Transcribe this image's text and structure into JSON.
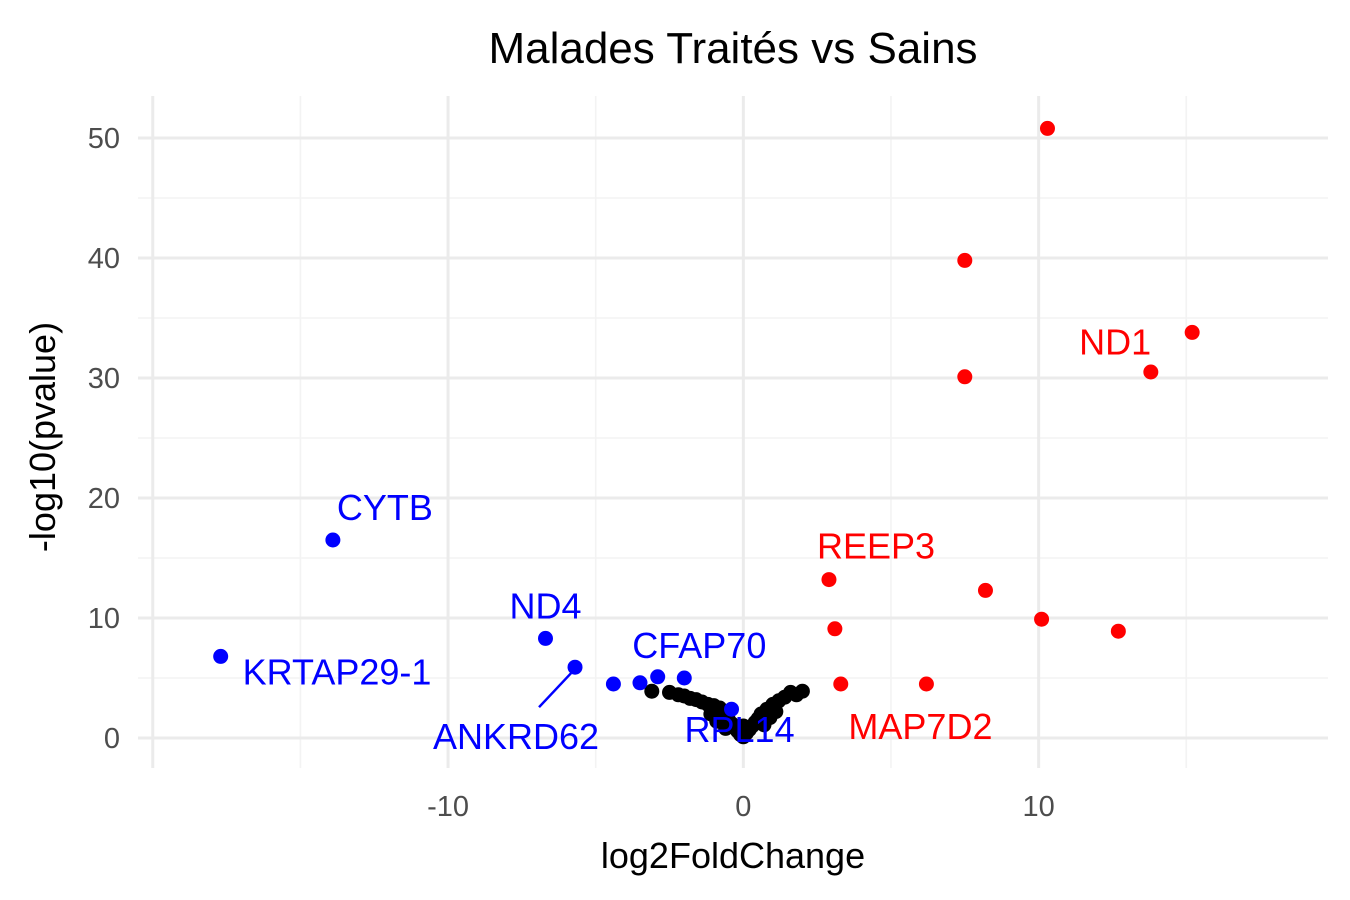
{
  "chart_data": {
    "type": "scatter",
    "title": "Malades Traités vs Sains",
    "xlabel": "log2FoldChange",
    "ylabel": "-log10(pvalue)",
    "xlim": [
      -20.5,
      19.8
    ],
    "ylim": [
      -2.5,
      53.5
    ],
    "xticks": [
      -10,
      0,
      10
    ],
    "xtick_labels": [
      "-10",
      "0",
      "10"
    ],
    "yticks": [
      0,
      10,
      20,
      30,
      40,
      50
    ],
    "ytick_labels": [
      "0",
      "10",
      "20",
      "30",
      "40",
      "50"
    ],
    "grid": true,
    "colors": {
      "down": "#0000ff",
      "up": "#ff0000",
      "ns": "#000000"
    },
    "series": [
      {
        "group": "down",
        "points": [
          {
            "x": -17.7,
            "y": 6.8
          },
          {
            "x": -13.9,
            "y": 16.5
          },
          {
            "x": -6.7,
            "y": 8.3
          },
          {
            "x": -5.7,
            "y": 5.9
          },
          {
            "x": -4.4,
            "y": 4.5
          },
          {
            "x": -3.5,
            "y": 4.6
          },
          {
            "x": -2.9,
            "y": 5.1
          },
          {
            "x": -2.0,
            "y": 5.0
          },
          {
            "x": -0.4,
            "y": 2.4
          }
        ]
      },
      {
        "group": "up",
        "points": [
          {
            "x": 10.3,
            "y": 50.8
          },
          {
            "x": 7.5,
            "y": 39.8
          },
          {
            "x": 15.2,
            "y": 33.8
          },
          {
            "x": 13.8,
            "y": 30.5
          },
          {
            "x": 7.5,
            "y": 30.1
          },
          {
            "x": 2.9,
            "y": 13.2
          },
          {
            "x": 8.2,
            "y": 12.3
          },
          {
            "x": 10.1,
            "y": 9.9
          },
          {
            "x": 12.7,
            "y": 8.9
          },
          {
            "x": 3.1,
            "y": 9.1
          },
          {
            "x": 3.3,
            "y": 4.5
          },
          {
            "x": 6.2,
            "y": 4.5
          }
        ]
      },
      {
        "group": "ns",
        "points": [
          {
            "x": -3.1,
            "y": 3.9
          },
          {
            "x": -2.5,
            "y": 3.8
          },
          {
            "x": -2.2,
            "y": 3.6
          },
          {
            "x": -2.0,
            "y": 3.5
          },
          {
            "x": -1.8,
            "y": 3.3
          },
          {
            "x": -1.6,
            "y": 3.2
          },
          {
            "x": -1.4,
            "y": 3.0
          },
          {
            "x": -1.2,
            "y": 2.8
          },
          {
            "x": -1.0,
            "y": 2.7
          },
          {
            "x": -0.8,
            "y": 2.5
          },
          {
            "x": -0.7,
            "y": 2.1
          },
          {
            "x": -0.6,
            "y": 1.8
          },
          {
            "x": -0.5,
            "y": 1.5
          },
          {
            "x": -0.4,
            "y": 1.2
          },
          {
            "x": -0.3,
            "y": 0.9
          },
          {
            "x": -0.2,
            "y": 0.6
          },
          {
            "x": -0.1,
            "y": 0.3
          },
          {
            "x": 0.0,
            "y": 0.1
          },
          {
            "x": 0.1,
            "y": 0.4
          },
          {
            "x": 0.2,
            "y": 0.7
          },
          {
            "x": 0.3,
            "y": 1.0
          },
          {
            "x": 0.4,
            "y": 1.3
          },
          {
            "x": 0.5,
            "y": 1.6
          },
          {
            "x": 0.6,
            "y": 2.0
          },
          {
            "x": 0.8,
            "y": 2.4
          },
          {
            "x": 1.0,
            "y": 2.8
          },
          {
            "x": 1.2,
            "y": 3.1
          },
          {
            "x": 1.4,
            "y": 3.4
          },
          {
            "x": 1.6,
            "y": 3.8
          },
          {
            "x": 1.8,
            "y": 3.6
          },
          {
            "x": 2.0,
            "y": 3.9
          },
          {
            "x": -0.9,
            "y": 1.4
          },
          {
            "x": -0.6,
            "y": 0.8
          },
          {
            "x": 0.7,
            "y": 1.1
          },
          {
            "x": 0.9,
            "y": 1.7
          },
          {
            "x": -1.1,
            "y": 2.0
          },
          {
            "x": 1.1,
            "y": 2.2
          },
          {
            "x": 0.0,
            "y": 1.0
          }
        ]
      }
    ],
    "labels": [
      {
        "text": "CYTB",
        "x": -13.9,
        "y": 16.5,
        "group": "down"
      },
      {
        "text": "KRTAP29-1",
        "x": -17.7,
        "y": 6.8,
        "group": "down"
      },
      {
        "text": "ND4",
        "x": -6.7,
        "y": 8.3,
        "group": "down"
      },
      {
        "text": "ANKRD62",
        "x": -5.7,
        "y": 5.9,
        "group": "down"
      },
      {
        "text": "CFAP70",
        "x": -2.0,
        "y": 5.0,
        "group": "down"
      },
      {
        "text": "RPL14",
        "x": -0.4,
        "y": 2.4,
        "group": "down"
      },
      {
        "text": "ND1",
        "x": 15.2,
        "y": 33.8,
        "group": "up"
      },
      {
        "text": "REEP3",
        "x": 2.9,
        "y": 13.2,
        "group": "up"
      },
      {
        "text": "MAP7D2",
        "x": 6.2,
        "y": 4.5,
        "group": "up"
      }
    ]
  }
}
